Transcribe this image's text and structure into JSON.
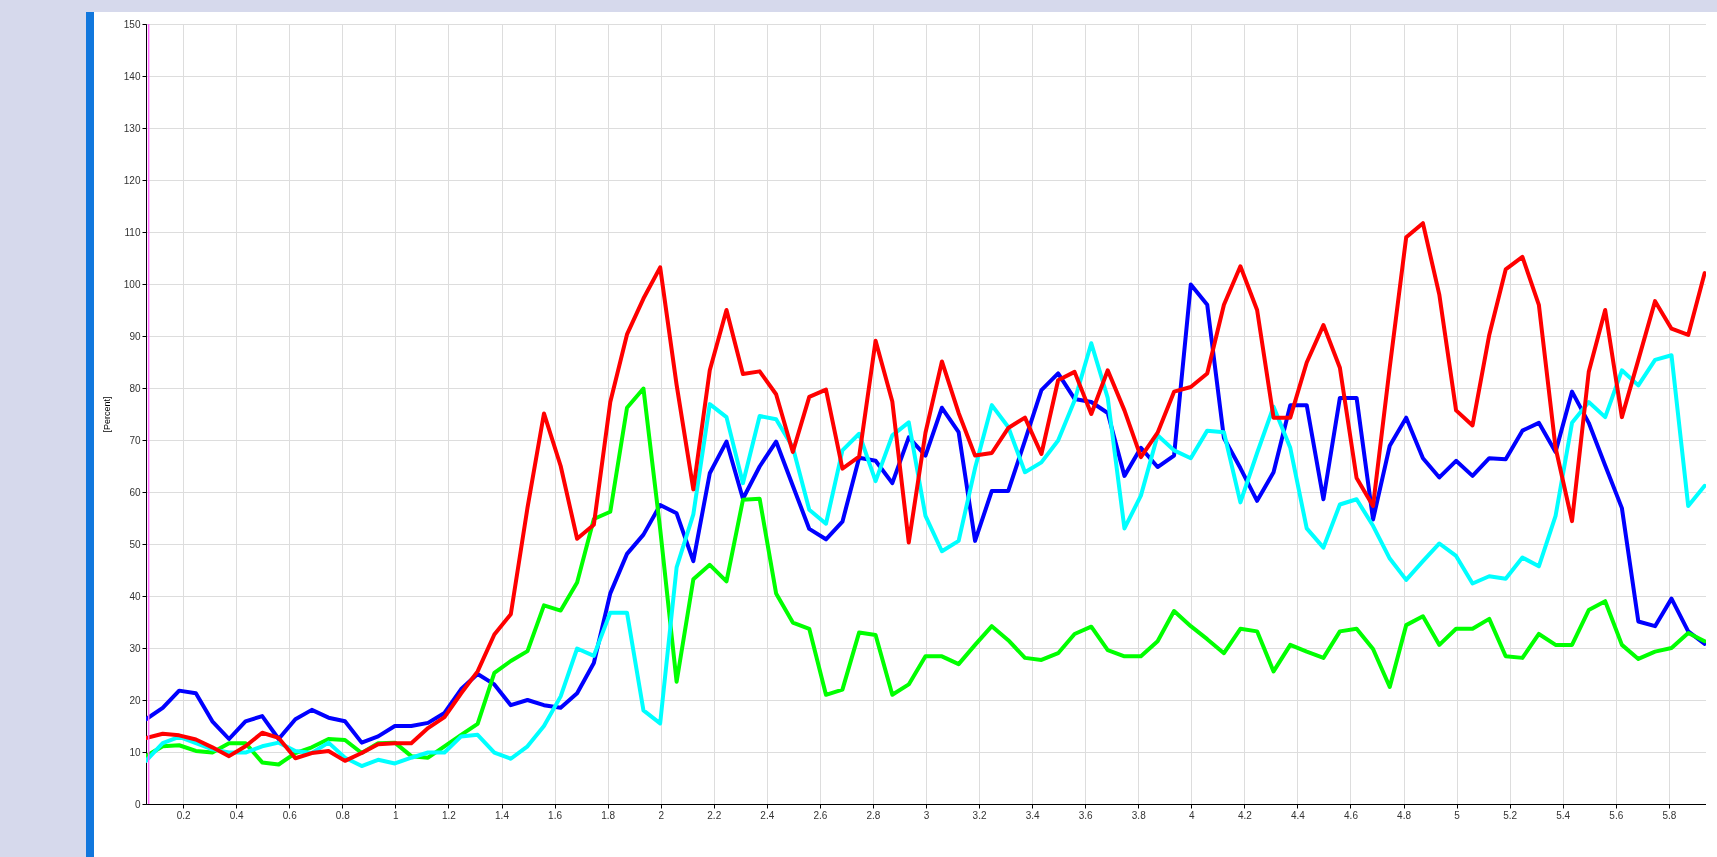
{
  "chart_data": {
    "type": "line",
    "ylabel": "[Percent]",
    "xlim": [
      0.06,
      5.94
    ],
    "ylim": [
      0,
      150
    ],
    "xticks": [
      0.2,
      0.4,
      0.6,
      0.8,
      1,
      1.2,
      1.4,
      1.6,
      1.8,
      2,
      2.2,
      2.4,
      2.6,
      2.8,
      3,
      3.2,
      3.4,
      3.6,
      3.8,
      4,
      4.2,
      4.4,
      4.6,
      4.8,
      5,
      5.2,
      5.4,
      5.6,
      5.8
    ],
    "yticks": [
      0,
      10,
      20,
      30,
      40,
      50,
      60,
      70,
      80,
      90,
      100,
      110,
      120,
      130,
      140,
      150
    ],
    "grid": true,
    "x": [
      0.06,
      0.123,
      0.185,
      0.248,
      0.31,
      0.373,
      0.435,
      0.498,
      0.56,
      0.623,
      0.685,
      0.748,
      0.81,
      0.873,
      0.935,
      0.998,
      1.06,
      1.123,
      1.185,
      1.248,
      1.31,
      1.373,
      1.435,
      1.498,
      1.56,
      1.623,
      1.685,
      1.748,
      1.81,
      1.873,
      1.935,
      1.998,
      2.06,
      2.123,
      2.185,
      2.248,
      2.31,
      2.373,
      2.435,
      2.498,
      2.56,
      2.623,
      2.685,
      2.748,
      2.81,
      2.873,
      2.935,
      2.998,
      3.06,
      3.123,
      3.185,
      3.248,
      3.31,
      3.373,
      3.435,
      3.498,
      3.56,
      3.623,
      3.685,
      3.748,
      3.81,
      3.873,
      3.935,
      3.998,
      4.06,
      4.123,
      4.185,
      4.248,
      4.31,
      4.373,
      4.435,
      4.498,
      4.56,
      4.623,
      4.685,
      4.748,
      4.81,
      4.873,
      4.935,
      4.998,
      5.06,
      5.123,
      5.185,
      5.248,
      5.31,
      5.373,
      5.435,
      5.498,
      5.56,
      5.623,
      5.685,
      5.748,
      5.81,
      5.873,
      5.935
    ],
    "series": [
      {
        "color": "#0000ff",
        "values": [
          16.3,
          18.5,
          21.8,
          21.3,
          15.9,
          12.5,
          15.9,
          16.9,
          12.5,
          16.3,
          18.1,
          16.6,
          15.9,
          11.8,
          13,
          15,
          15,
          15.6,
          17.5,
          22.1,
          25,
          23,
          19,
          20,
          19,
          18.5,
          21.3,
          27.1,
          40.5,
          48.1,
          51.8,
          57.5,
          55.9,
          46.7,
          63.6,
          69.7,
          58.7,
          64.9,
          69.7,
          61.2,
          52.9,
          50.9,
          54.3,
          66.6,
          66,
          61.7,
          70.5,
          67,
          76.2,
          71.5,
          50.6,
          60.2,
          60.2,
          69.9,
          79.6,
          82.8,
          77.9,
          77.3,
          75.2,
          63.1,
          68.5,
          64.8,
          67,
          99.9,
          96,
          70.4,
          64.6,
          58.3,
          63.8,
          76.7,
          76.7,
          58.6,
          78.1,
          78.1,
          54.7,
          68.9,
          74.3,
          66.5,
          62.8,
          66,
          63.1,
          66.5,
          66.3,
          71.8,
          73.3,
          67.7,
          79.3,
          73.3,
          65.1,
          56.9,
          35.1,
          34.2,
          39.5,
          33.2,
          30.8
        ]
      },
      {
        "color": "#00ff00",
        "values": [
          9.2,
          11.1,
          11.3,
          10.2,
          9.9,
          11.7,
          11.7,
          8,
          7.6,
          9.8,
          10.9,
          12.5,
          12.3,
          9.8,
          11.7,
          11.8,
          9.2,
          8.9,
          11.1,
          13.3,
          15.4,
          25.2,
          27.5,
          29.4,
          38.2,
          37.2,
          42.6,
          54.8,
          56.2,
          76.2,
          79.9,
          52.9,
          23.5,
          43.2,
          46,
          42.8,
          58.5,
          58.7,
          40.5,
          34.9,
          33.7,
          21,
          22,
          33,
          32.5,
          21,
          23,
          28.4,
          28.4,
          26.9,
          30.6,
          34.2,
          31.5,
          28.1,
          27.7,
          29,
          32.7,
          34.1,
          29.6,
          28.4,
          28.4,
          31.3,
          37.1,
          34.2,
          31.7,
          29,
          33.7,
          33.2,
          25.5,
          30.6,
          29.3,
          28.1,
          33.2,
          33.7,
          29.8,
          22.5,
          34.4,
          36.1,
          30.6,
          33.7,
          33.7,
          35.6,
          28.4,
          28.1,
          32.7,
          30.6,
          30.6,
          37.3,
          39,
          30.6,
          27.9,
          29.3,
          30,
          32.9,
          31.3
        ]
      },
      {
        "color": "#00ffff",
        "values": [
          8.3,
          11.7,
          12.9,
          11.7,
          10.5,
          9.9,
          9.9,
          11.1,
          11.8,
          10.2,
          9.8,
          11.8,
          8.9,
          7.3,
          8.5,
          7.8,
          8.9,
          9.9,
          9.9,
          13,
          13.3,
          9.9,
          8.7,
          11.1,
          15,
          20.7,
          29.9,
          28.5,
          36.8,
          36.8,
          18,
          15.5,
          45.5,
          55.7,
          76.9,
          74.4,
          61.7,
          74.6,
          74,
          68.6,
          56.6,
          53.9,
          68,
          71.2,
          62.1,
          70.9,
          73.4,
          55.4,
          48.6,
          50.6,
          64.6,
          76.7,
          72.5,
          63.8,
          65.7,
          69.9,
          77.6,
          88.6,
          78.1,
          53,
          59.3,
          70.9,
          68,
          66.5,
          71.8,
          71.5,
          58,
          67.5,
          76.4,
          68.5,
          53,
          49.3,
          57.6,
          58.6,
          53.5,
          47.2,
          43.1,
          46.7,
          50.1,
          47.7,
          42.4,
          43.8,
          43.3,
          47.4,
          45.7,
          55.4,
          73.3,
          77.3,
          74.4,
          83.4,
          80.5,
          85.4,
          86.3,
          57.3,
          61.2
        ]
      },
      {
        "color": "#ff0000",
        "values": [
          12.7,
          13.5,
          13.2,
          12.4,
          10.9,
          9.2,
          11.1,
          13.7,
          12.7,
          8.8,
          9.8,
          10.2,
          8.3,
          9.8,
          11.5,
          11.7,
          11.7,
          14.6,
          16.7,
          21.3,
          25.5,
          32.6,
          36.5,
          57,
          75.1,
          65,
          51,
          53.7,
          77.3,
          90.3,
          97.2,
          103.2,
          80.6,
          60.5,
          83.4,
          95,
          82.7,
          83.2,
          78.8,
          67.7,
          78.3,
          79.7,
          64.5,
          66.8,
          89.1,
          77.4,
          50.3,
          71.4,
          85.1,
          75.2,
          67,
          67.5,
          72.3,
          74.3,
          67.3,
          81.5,
          83.1,
          75,
          83.4,
          75.7,
          66.7,
          71.4,
          79.3,
          80.2,
          82.8,
          96,
          103.4,
          95,
          74.3,
          74.3,
          84.9,
          92.1,
          83.9,
          62.7,
          57.3,
          84,
          109,
          111.7,
          97.9,
          75.7,
          72.8,
          90.2,
          102.8,
          105.2,
          96,
          68.5,
          54.4,
          83.1,
          95,
          74.4,
          85.4,
          96.7,
          91.4,
          90.2,
          102.1
        ]
      }
    ],
    "ref_lines": [
      {
        "axis": "x",
        "value": 0.07,
        "color": "#ff66ff"
      }
    ]
  }
}
